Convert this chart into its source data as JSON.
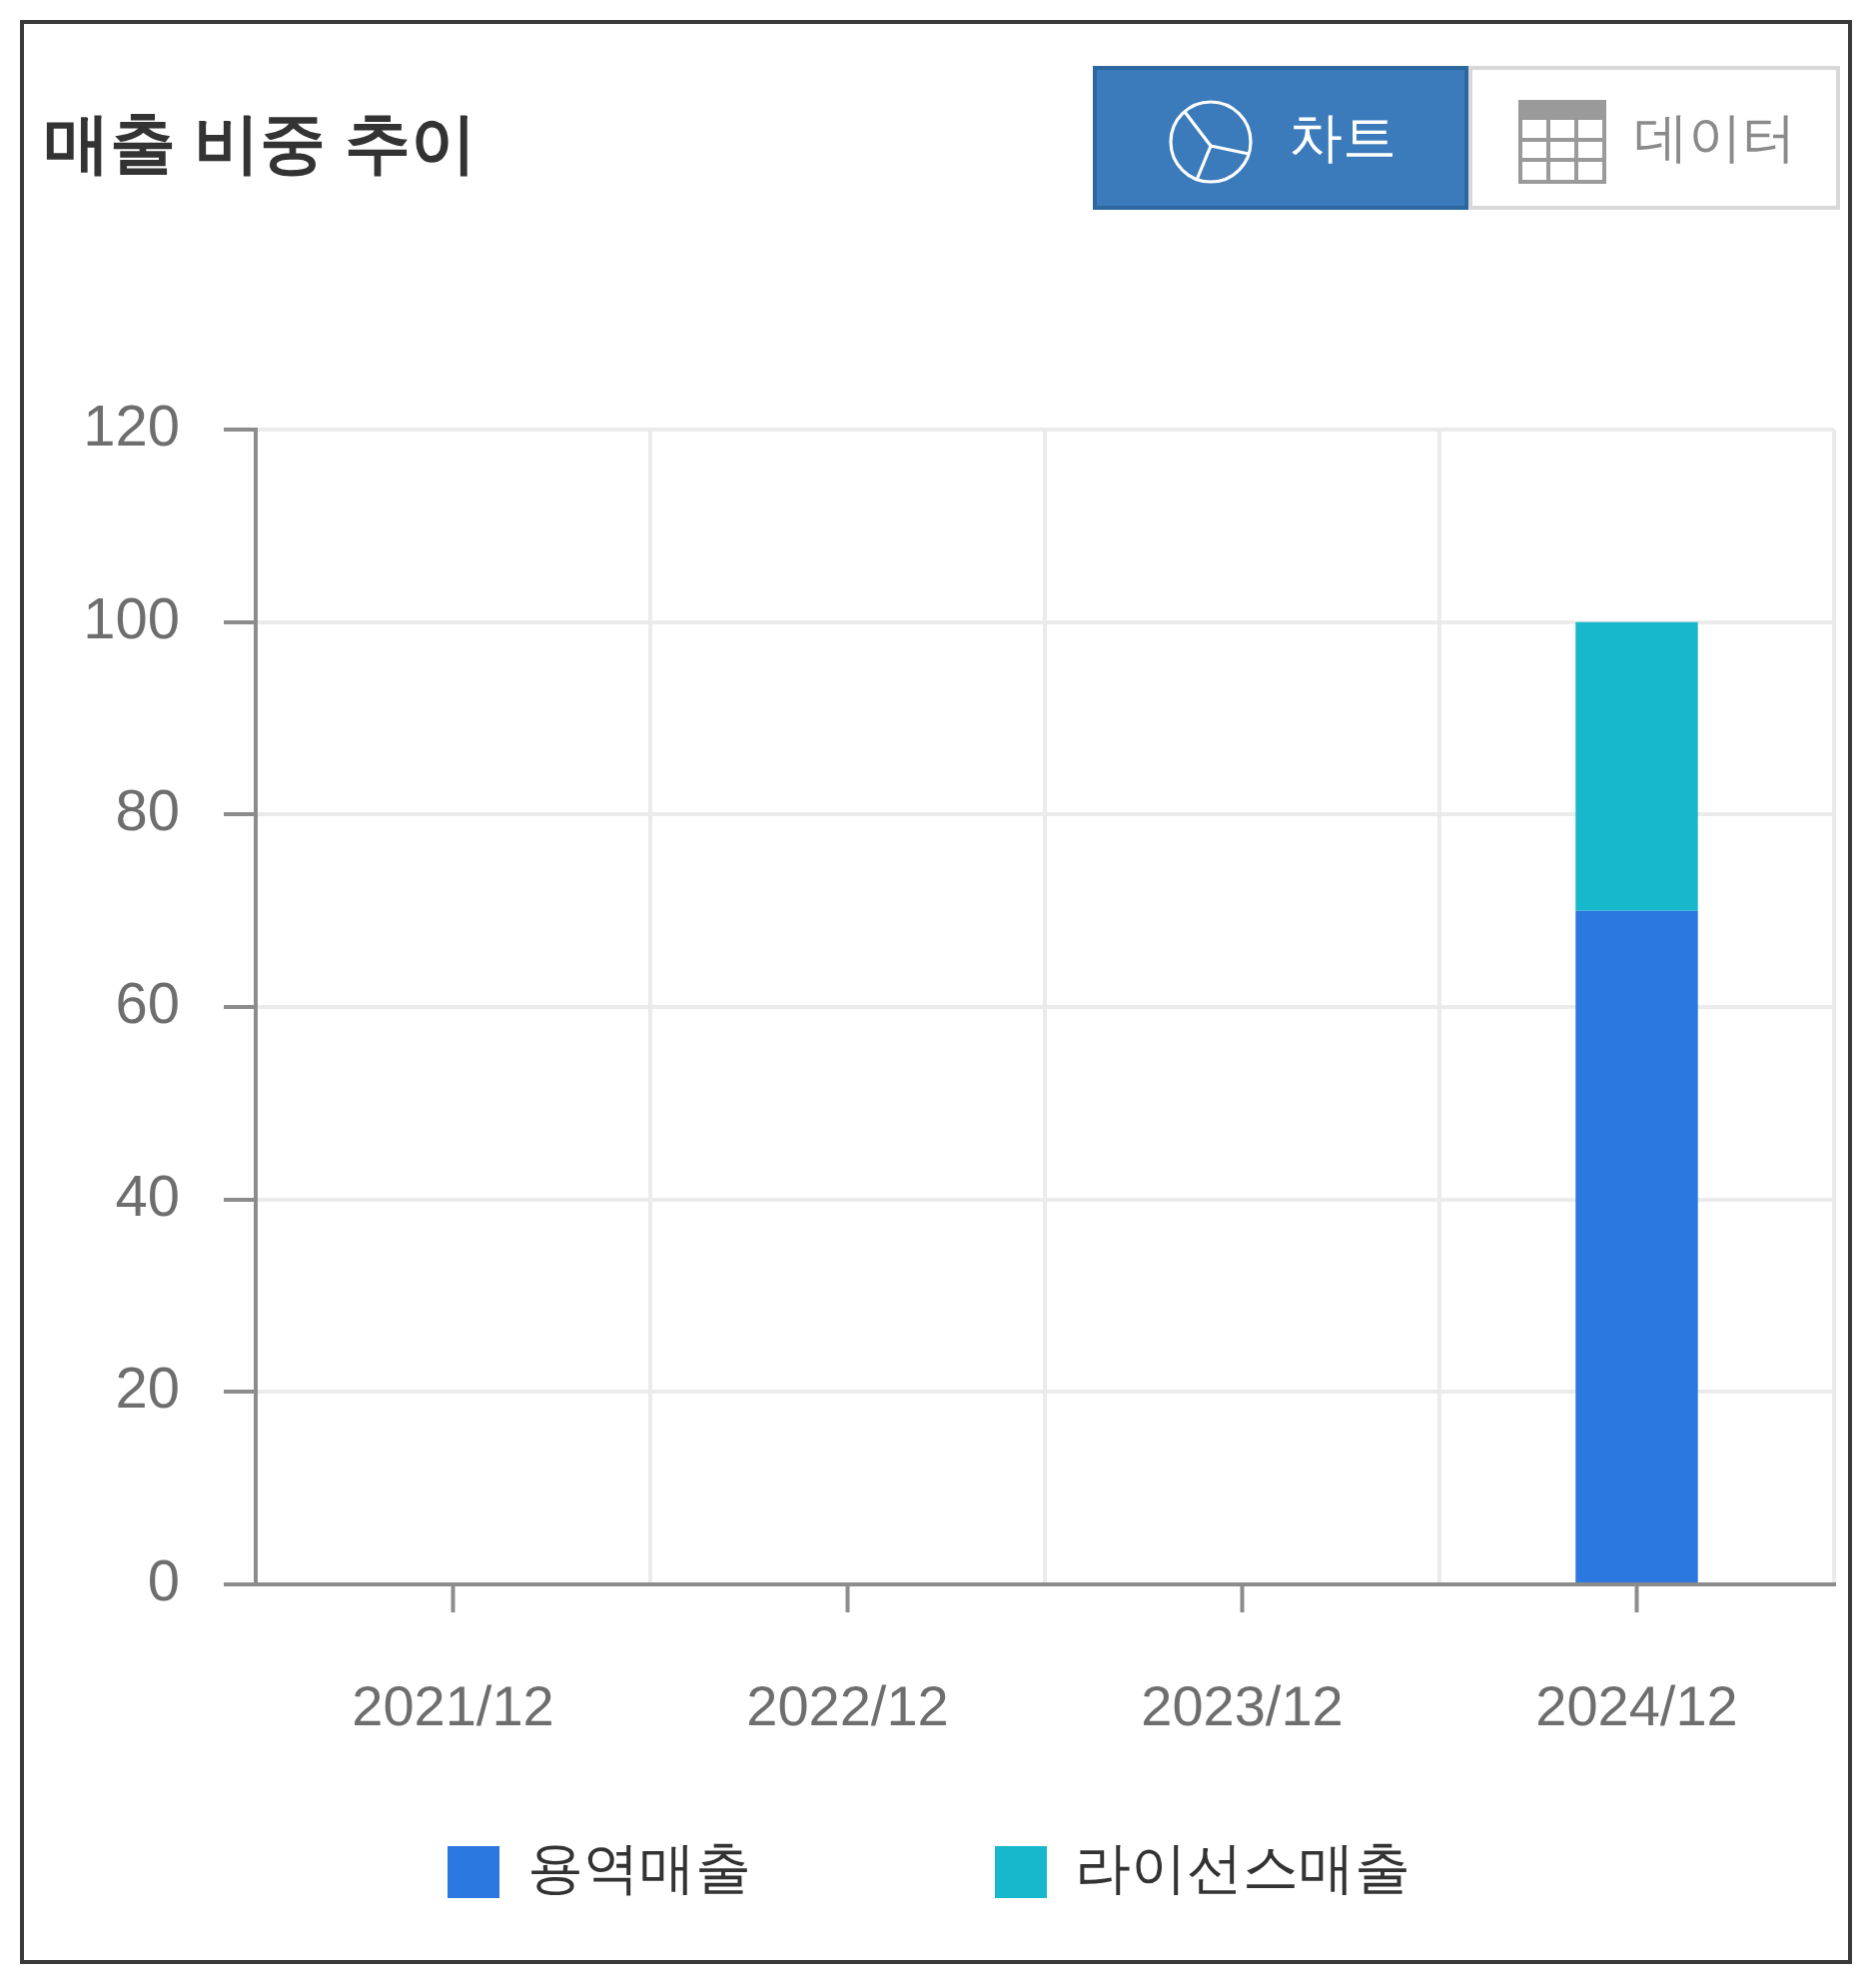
{
  "chart_data": {
    "type": "bar",
    "title": "매출 비중 추이",
    "categories": [
      "2021/12",
      "2022/12",
      "2023/12",
      "2024/12"
    ],
    "series": [
      {
        "name": "용역매출",
        "color": "#2a78e0",
        "values": [
          null,
          null,
          null,
          70
        ]
      },
      {
        "name": "라이선스매출",
        "color": "#17b8cc",
        "values": [
          null,
          null,
          null,
          30
        ]
      }
    ],
    "stacked": true,
    "ylim": [
      0,
      120
    ],
    "yticks": [
      0,
      20,
      40,
      60,
      80,
      100,
      120
    ],
    "grid": true,
    "legend": "bottom",
    "annotations": [
      "차트",
      "데이터"
    ]
  }
}
